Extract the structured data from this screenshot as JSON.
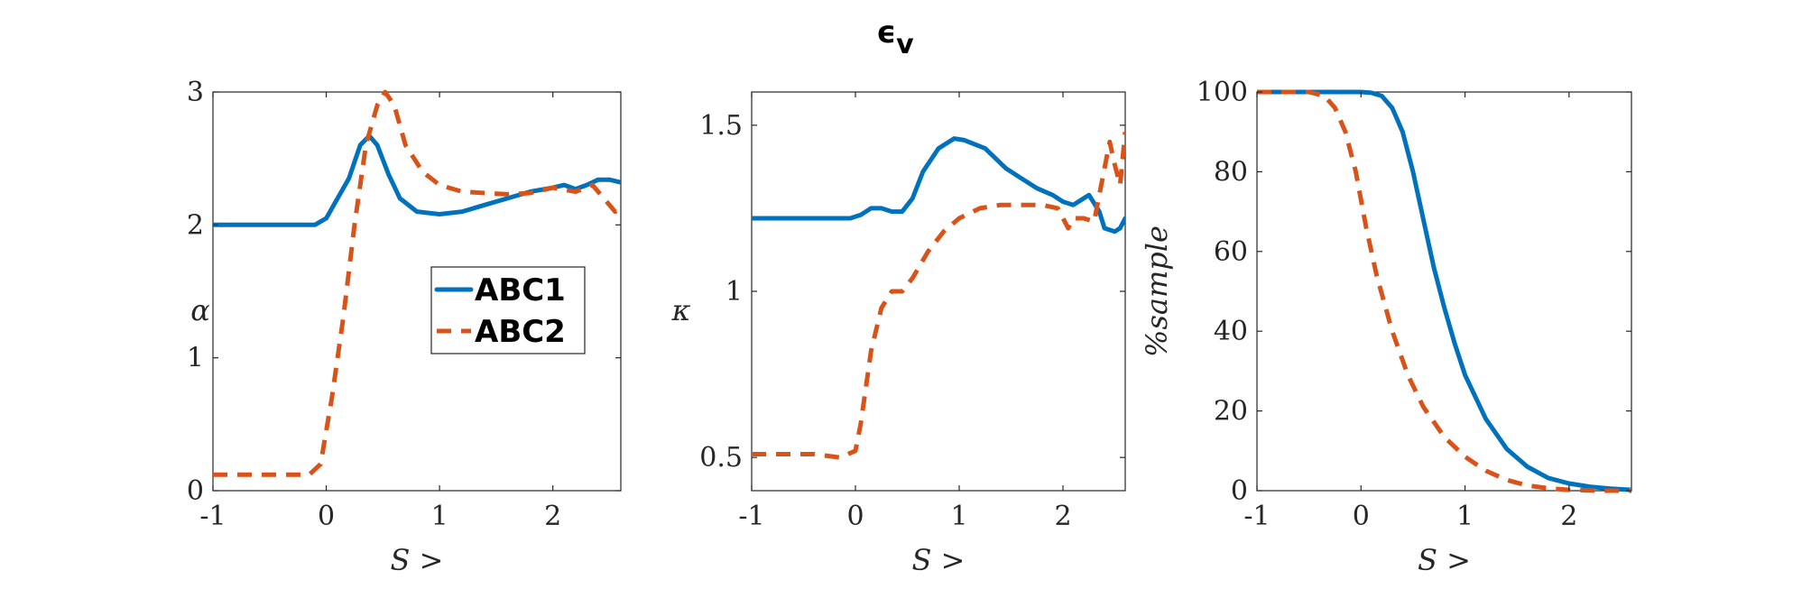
{
  "figure": {
    "title_base": "ϵ",
    "title_sub": "v"
  },
  "colors": {
    "ABC1": "#0072BD",
    "ABC2": "#D95319",
    "axis": "#262626"
  },
  "legend": {
    "entries": [
      "ABC1",
      "ABC2"
    ],
    "placement": "inside-right (left panel)"
  },
  "chart_data": [
    {
      "type": "line",
      "title": "",
      "xlabel": "S >",
      "ylabel": "α",
      "xlim": [
        -1,
        2.6
      ],
      "ylim": [
        0,
        3
      ],
      "xticks": [
        -1,
        0,
        1,
        2
      ],
      "xtick_labels": [
        "-1",
        "0",
        "1",
        "2"
      ],
      "yticks": [
        0,
        1,
        2,
        3
      ],
      "ytick_labels": [
        "0",
        "1",
        "2",
        "3"
      ],
      "grid": false,
      "series": [
        {
          "name": "ABC1",
          "style": "solid",
          "points": [
            [
              -1,
              2.0
            ],
            [
              -0.1,
              2.0
            ],
            [
              0.0,
              2.05
            ],
            [
              0.1,
              2.2
            ],
            [
              0.2,
              2.35
            ],
            [
              0.3,
              2.6
            ],
            [
              0.38,
              2.67
            ],
            [
              0.45,
              2.6
            ],
            [
              0.55,
              2.38
            ],
            [
              0.65,
              2.2
            ],
            [
              0.8,
              2.1
            ],
            [
              1.0,
              2.08
            ],
            [
              1.2,
              2.1
            ],
            [
              1.4,
              2.15
            ],
            [
              1.6,
              2.2
            ],
            [
              1.8,
              2.25
            ],
            [
              2.0,
              2.28
            ],
            [
              2.1,
              2.3
            ],
            [
              2.2,
              2.27
            ],
            [
              2.3,
              2.3
            ],
            [
              2.4,
              2.34
            ],
            [
              2.5,
              2.34
            ],
            [
              2.6,
              2.32
            ]
          ]
        },
        {
          "name": "ABC2",
          "style": "dashed",
          "points": [
            [
              -1,
              0.12
            ],
            [
              -0.15,
              0.12
            ],
            [
              -0.05,
              0.2
            ],
            [
              0.05,
              0.7
            ],
            [
              0.15,
              1.3
            ],
            [
              0.25,
              2.0
            ],
            [
              0.35,
              2.6
            ],
            [
              0.45,
              2.9
            ],
            [
              0.52,
              3.0
            ],
            [
              0.6,
              2.9
            ],
            [
              0.7,
              2.6
            ],
            [
              0.85,
              2.4
            ],
            [
              1.0,
              2.3
            ],
            [
              1.2,
              2.25
            ],
            [
              1.4,
              2.24
            ],
            [
              1.6,
              2.23
            ],
            [
              1.8,
              2.24
            ],
            [
              2.0,
              2.28
            ],
            [
              2.2,
              2.25
            ],
            [
              2.35,
              2.3
            ],
            [
              2.45,
              2.2
            ],
            [
              2.55,
              2.1
            ],
            [
              2.6,
              2.15
            ]
          ]
        }
      ]
    },
    {
      "type": "line",
      "title": "",
      "xlabel": "S >",
      "ylabel": "κ",
      "xlim": [
        -1,
        2.6
      ],
      "ylim": [
        0.4,
        1.6
      ],
      "xticks": [
        -1,
        0,
        1,
        2
      ],
      "xtick_labels": [
        "-1",
        "0",
        "1",
        "2"
      ],
      "yticks": [
        0.5,
        1,
        1.5
      ],
      "ytick_labels": [
        "0.5",
        "1",
        "1.5"
      ],
      "grid": false,
      "series": [
        {
          "name": "ABC1",
          "style": "solid",
          "points": [
            [
              -1,
              1.22
            ],
            [
              -0.05,
              1.22
            ],
            [
              0.05,
              1.23
            ],
            [
              0.15,
              1.25
            ],
            [
              0.25,
              1.25
            ],
            [
              0.35,
              1.24
            ],
            [
              0.45,
              1.24
            ],
            [
              0.55,
              1.28
            ],
            [
              0.65,
              1.36
            ],
            [
              0.8,
              1.43
            ],
            [
              0.95,
              1.46
            ],
            [
              1.05,
              1.455
            ],
            [
              1.25,
              1.43
            ],
            [
              1.45,
              1.37
            ],
            [
              1.6,
              1.34
            ],
            [
              1.75,
              1.31
            ],
            [
              1.9,
              1.29
            ],
            [
              2.0,
              1.27
            ],
            [
              2.1,
              1.26
            ],
            [
              2.2,
              1.28
            ],
            [
              2.25,
              1.29
            ],
            [
              2.35,
              1.24
            ],
            [
              2.4,
              1.19
            ],
            [
              2.5,
              1.18
            ],
            [
              2.55,
              1.19
            ],
            [
              2.6,
              1.22
            ]
          ]
        },
        {
          "name": "ABC2",
          "style": "dashed",
          "points": [
            [
              -1,
              0.51
            ],
            [
              -0.4,
              0.51
            ],
            [
              -0.15,
              0.5
            ],
            [
              0.0,
              0.52
            ],
            [
              0.05,
              0.6
            ],
            [
              0.15,
              0.82
            ],
            [
              0.25,
              0.95
            ],
            [
              0.35,
              1.0
            ],
            [
              0.45,
              1.0
            ],
            [
              0.55,
              1.04
            ],
            [
              0.7,
              1.12
            ],
            [
              0.85,
              1.18
            ],
            [
              1.0,
              1.22
            ],
            [
              1.2,
              1.25
            ],
            [
              1.4,
              1.26
            ],
            [
              1.6,
              1.26
            ],
            [
              1.8,
              1.26
            ],
            [
              1.95,
              1.25
            ],
            [
              2.05,
              1.19
            ],
            [
              2.1,
              1.22
            ],
            [
              2.2,
              1.22
            ],
            [
              2.3,
              1.21
            ],
            [
              2.4,
              1.37
            ],
            [
              2.45,
              1.45
            ],
            [
              2.5,
              1.38
            ],
            [
              2.55,
              1.32
            ],
            [
              2.6,
              1.48
            ]
          ]
        }
      ]
    },
    {
      "type": "line",
      "title": "",
      "xlabel": "S >",
      "ylabel": "%sample",
      "xlim": [
        -1,
        2.6
      ],
      "ylim": [
        0,
        100
      ],
      "xticks": [
        -1,
        0,
        1,
        2
      ],
      "xtick_labels": [
        "-1",
        "0",
        "1",
        "2"
      ],
      "yticks": [
        0,
        20,
        40,
        60,
        80,
        100
      ],
      "ytick_labels": [
        "0",
        "20",
        "40",
        "60",
        "80",
        "100"
      ],
      "grid": false,
      "series": [
        {
          "name": "ABC1",
          "style": "solid",
          "points": [
            [
              -1,
              100
            ],
            [
              0.0,
              100
            ],
            [
              0.1,
              99.8
            ],
            [
              0.2,
              99
            ],
            [
              0.3,
              96
            ],
            [
              0.4,
              90
            ],
            [
              0.5,
              80
            ],
            [
              0.6,
              68
            ],
            [
              0.7,
              56
            ],
            [
              0.8,
              46
            ],
            [
              0.9,
              37
            ],
            [
              1.0,
              29
            ],
            [
              1.2,
              18
            ],
            [
              1.4,
              10.5
            ],
            [
              1.6,
              6
            ],
            [
              1.8,
              3.2
            ],
            [
              2.0,
              1.8
            ],
            [
              2.2,
              1.0
            ],
            [
              2.4,
              0.5
            ],
            [
              2.6,
              0.2
            ]
          ]
        },
        {
          "name": "ABC2",
          "style": "dashed",
          "points": [
            [
              -1,
              100
            ],
            [
              -0.5,
              100
            ],
            [
              -0.35,
              99
            ],
            [
              -0.25,
              96
            ],
            [
              -0.15,
              90
            ],
            [
              -0.05,
              80
            ],
            [
              0.05,
              66
            ],
            [
              0.15,
              54
            ],
            [
              0.3,
              40
            ],
            [
              0.45,
              29
            ],
            [
              0.6,
              21
            ],
            [
              0.8,
              13.5
            ],
            [
              1.0,
              8.5
            ],
            [
              1.2,
              5
            ],
            [
              1.4,
              2.7
            ],
            [
              1.6,
              1.3
            ],
            [
              1.8,
              0.6
            ],
            [
              2.0,
              0.2
            ],
            [
              2.3,
              0
            ],
            [
              2.6,
              0
            ]
          ]
        }
      ]
    }
  ]
}
